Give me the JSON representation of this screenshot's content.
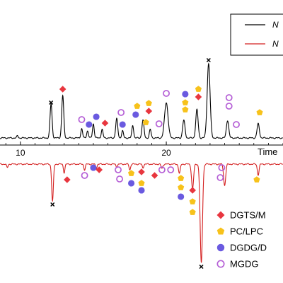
{
  "chart_data": {
    "type": "line",
    "xlabel": "Time",
    "xticks": [
      10,
      20
    ],
    "xlim": [
      8.6,
      28
    ],
    "legend_location": "top-right",
    "legend_label": "N",
    "colors": {
      "top_trace": "#000000",
      "bottom_trace": "#d42020",
      "DGTS/M": "#e8363f",
      "PC/LPC": "#f7c21b",
      "DGDG/D": "#6a5ae0",
      "MGDG": "#b55fd6"
    },
    "series": [
      {
        "name": "N",
        "color_key": "top_trace",
        "peaks": [
          {
            "x": 9.8,
            "h": 3,
            "w": 0.05
          },
          {
            "x": 12.1,
            "h": 48,
            "w": 0.07
          },
          {
            "x": 12.9,
            "h": 60,
            "w": 0.07
          },
          {
            "x": 14.2,
            "h": 13,
            "w": 0.06
          },
          {
            "x": 14.6,
            "h": 10,
            "w": 0.06
          },
          {
            "x": 15.0,
            "h": 20,
            "w": 0.06
          },
          {
            "x": 15.6,
            "h": 12,
            "w": 0.06
          },
          {
            "x": 16.6,
            "h": 27,
            "w": 0.07
          },
          {
            "x": 17.0,
            "h": 10,
            "w": 0.06
          },
          {
            "x": 17.7,
            "h": 18,
            "w": 0.06
          },
          {
            "x": 18.4,
            "h": 25,
            "w": 0.07
          },
          {
            "x": 18.9,
            "h": 12,
            "w": 0.06
          },
          {
            "x": 20.0,
            "h": 50,
            "w": 0.12
          },
          {
            "x": 21.2,
            "h": 25,
            "w": 0.08
          },
          {
            "x": 22.1,
            "h": 40,
            "w": 0.08
          },
          {
            "x": 22.9,
            "h": 105,
            "w": 0.1
          },
          {
            "x": 24.2,
            "h": 25,
            "w": 0.08
          },
          {
            "x": 26.3,
            "h": 20,
            "w": 0.08
          }
        ]
      },
      {
        "name": "N",
        "color_key": "bottom_trace",
        "peaks": [
          {
            "x": 9.1,
            "h": 5,
            "w": 0.05
          },
          {
            "x": 12.2,
            "h": 52,
            "w": 0.06
          },
          {
            "x": 13.0,
            "h": 12,
            "w": 0.05
          },
          {
            "x": 14.4,
            "h": 8,
            "w": 0.05
          },
          {
            "x": 15.2,
            "h": 6,
            "w": 0.05
          },
          {
            "x": 16.6,
            "h": 4,
            "w": 0.05
          },
          {
            "x": 17.5,
            "h": 8,
            "w": 0.05
          },
          {
            "x": 18.4,
            "h": 5,
            "w": 0.05
          },
          {
            "x": 19.7,
            "h": 6,
            "w": 0.06
          },
          {
            "x": 20.9,
            "h": 13,
            "w": 0.06
          },
          {
            "x": 21.8,
            "h": 35,
            "w": 0.07
          },
          {
            "x": 22.4,
            "h": 140,
            "w": 0.08
          },
          {
            "x": 24.0,
            "h": 30,
            "w": 0.07
          },
          {
            "x": 26.3,
            "h": 15,
            "w": 0.06
          }
        ]
      }
    ],
    "markers": {
      "top": [
        {
          "x": 12.1,
          "y": 50,
          "cls": "X"
        },
        {
          "x": 12.9,
          "y": 69,
          "cls": "DGTS/M"
        },
        {
          "x": 14.2,
          "y": 26,
          "cls": "MGDG"
        },
        {
          "x": 14.7,
          "y": 19,
          "cls": "DGDG/D"
        },
        {
          "x": 15.2,
          "y": 30,
          "cls": "DGDG/D"
        },
        {
          "x": 15.8,
          "y": 21,
          "cls": "DGTS/M"
        },
        {
          "x": 17.0,
          "y": 19,
          "cls": "DGDG/D"
        },
        {
          "x": 16.9,
          "y": 36,
          "cls": "MGDG"
        },
        {
          "x": 17.9,
          "y": 33,
          "cls": "DGDG/D"
        },
        {
          "x": 18.0,
          "y": 45,
          "cls": "PC/LPC"
        },
        {
          "x": 18.6,
          "y": 22,
          "cls": "PC/LPC"
        },
        {
          "x": 18.8,
          "y": 38,
          "cls": "DGTS/M"
        },
        {
          "x": 18.8,
          "y": 49,
          "cls": "PC/LPC"
        },
        {
          "x": 19.5,
          "y": 20,
          "cls": "MGDG"
        },
        {
          "x": 20.0,
          "y": 63,
          "cls": "MGDG"
        },
        {
          "x": 21.3,
          "y": 40,
          "cls": "PC/LPC"
        },
        {
          "x": 21.3,
          "y": 50,
          "cls": "PC/LPC"
        },
        {
          "x": 21.3,
          "y": 62,
          "cls": "DGDG/D"
        },
        {
          "x": 22.2,
          "y": 58,
          "cls": "DGTS/M"
        },
        {
          "x": 22.2,
          "y": 69,
          "cls": "PC/LPC"
        },
        {
          "x": 22.9,
          "y": 110,
          "cls": "X"
        },
        {
          "x": 24.3,
          "y": 57,
          "cls": "MGDG"
        },
        {
          "x": 24.3,
          "y": 45,
          "cls": "MGDG"
        },
        {
          "x": 24.8,
          "y": 19,
          "cls": "MGDG"
        },
        {
          "x": 26.4,
          "y": 36,
          "cls": "PC/LPC"
        }
      ],
      "bottom": [
        {
          "x": 12.2,
          "y": 57,
          "cls": "X"
        },
        {
          "x": 13.2,
          "y": 22,
          "cls": "DGTS/M"
        },
        {
          "x": 14.4,
          "y": 16,
          "cls": "MGDG"
        },
        {
          "x": 15.0,
          "y": 5,
          "cls": "DGDG/D"
        },
        {
          "x": 15.4,
          "y": 8,
          "cls": "DGTS/M"
        },
        {
          "x": 16.7,
          "y": 8,
          "cls": "MGDG"
        },
        {
          "x": 16.8,
          "y": 21,
          "cls": "MGDG"
        },
        {
          "x": 17.6,
          "y": 13,
          "cls": "PC/LPC"
        },
        {
          "x": 17.6,
          "y": 27,
          "cls": "DGDG/D"
        },
        {
          "x": 18.3,
          "y": 11,
          "cls": "DGTS/M"
        },
        {
          "x": 18.3,
          "y": 27,
          "cls": "PC/LPC"
        },
        {
          "x": 18.3,
          "y": 37,
          "cls": "DGDG/D"
        },
        {
          "x": 19.2,
          "y": 16,
          "cls": "DGTS/M"
        },
        {
          "x": 19.7,
          "y": 8,
          "cls": "MGDG"
        },
        {
          "x": 20.3,
          "y": 8,
          "cls": "MGDG"
        },
        {
          "x": 21.0,
          "y": 20,
          "cls": "PC/LPC"
        },
        {
          "x": 21.0,
          "y": 33,
          "cls": "PC/LPC"
        },
        {
          "x": 21.0,
          "y": 46,
          "cls": "DGDG/D"
        },
        {
          "x": 21.8,
          "y": 37,
          "cls": "DGTS/M"
        },
        {
          "x": 21.8,
          "y": 53,
          "cls": "PC/LPC"
        },
        {
          "x": 21.8,
          "y": 68,
          "cls": "PC/LPC"
        },
        {
          "x": 22.4,
          "y": 145,
          "cls": "X"
        },
        {
          "x": 23.8,
          "y": 5,
          "cls": "MGDG"
        },
        {
          "x": 23.7,
          "y": 19,
          "cls": "MGDG"
        },
        {
          "x": 26.2,
          "y": 22,
          "cls": "PC/LPC"
        }
      ]
    },
    "class_legend": [
      {
        "label": "DGTS/M",
        "shape": "diamond"
      },
      {
        "label": "PC/LPC",
        "shape": "pentagon"
      },
      {
        "label": "DGDG/D",
        "shape": "circle"
      },
      {
        "label": "MGDG",
        "shape": "ring"
      }
    ]
  }
}
